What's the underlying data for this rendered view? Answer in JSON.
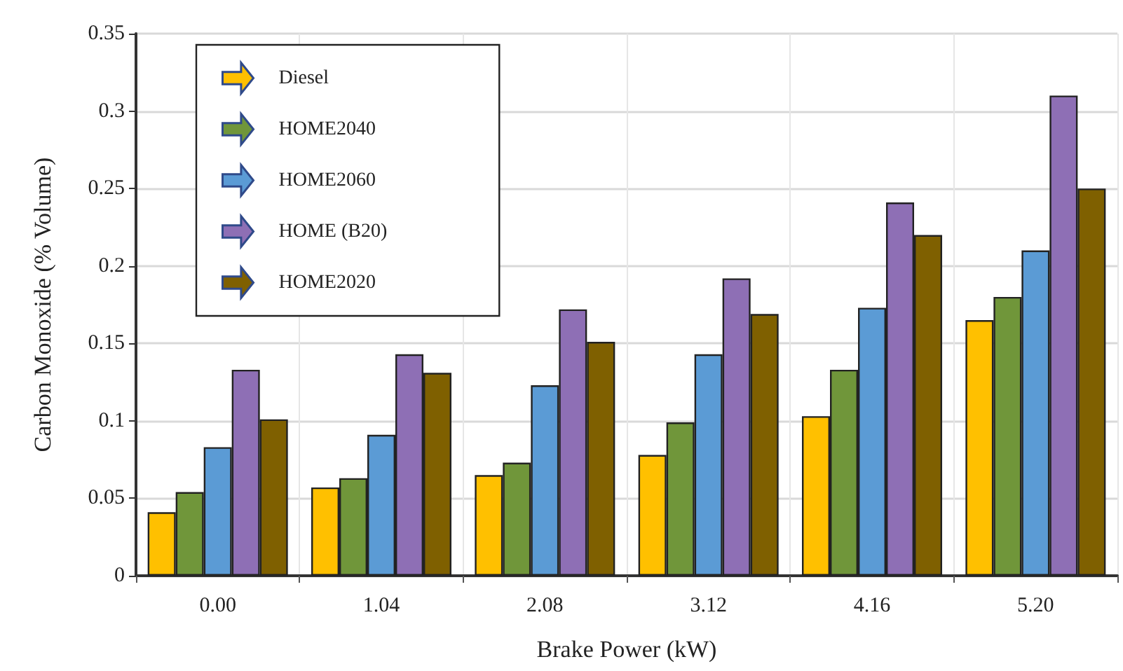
{
  "chart_data": {
    "type": "bar",
    "xlabel": "Brake Power (kW)",
    "ylabel": "Carbon Monoxide (% Volume)",
    "categories": [
      "0.00",
      "1.04",
      "2.08",
      "3.12",
      "4.16",
      "5.20"
    ],
    "series": [
      {
        "name": "Diesel",
        "color": "#ffc000",
        "values": [
          0.041,
          0.057,
          0.065,
          0.078,
          0.103,
          0.165
        ]
      },
      {
        "name": "HOME2040",
        "color": "#70963a",
        "values": [
          0.054,
          0.063,
          0.073,
          0.099,
          0.133,
          0.18
        ]
      },
      {
        "name": "HOME2060",
        "color": "#5b9bd5",
        "values": [
          0.083,
          0.091,
          0.123,
          0.143,
          0.173,
          0.21
        ]
      },
      {
        "name": "HOME (B20)",
        "color": "#8e6fb5",
        "values": [
          0.133,
          0.143,
          0.172,
          0.192,
          0.241,
          0.31
        ]
      },
      {
        "name": "HOME2020",
        "color": "#7f6000",
        "values": [
          0.101,
          0.131,
          0.151,
          0.169,
          0.22,
          0.25
        ]
      }
    ],
    "ylim": [
      0,
      0.35
    ],
    "yticks": [
      0,
      0.05,
      0.1,
      0.15,
      0.2,
      0.25,
      0.3,
      0.35
    ],
    "grid": true,
    "legend": "top left"
  }
}
